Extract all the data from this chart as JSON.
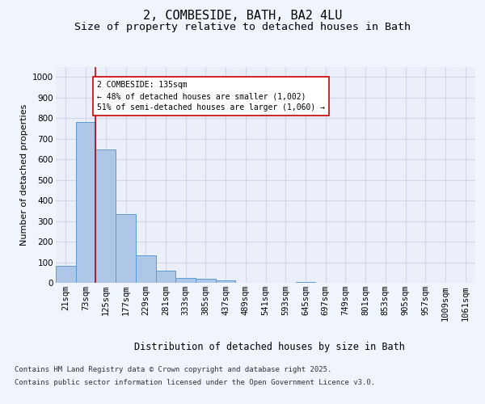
{
  "title_line1": "2, COMBESIDE, BATH, BA2 4LU",
  "title_line2": "Size of property relative to detached houses in Bath",
  "xlabel": "Distribution of detached houses by size in Bath",
  "ylabel": "Number of detached properties",
  "categories": [
    "21sqm",
    "73sqm",
    "125sqm",
    "177sqm",
    "229sqm",
    "281sqm",
    "333sqm",
    "385sqm",
    "437sqm",
    "489sqm",
    "541sqm",
    "593sqm",
    "645sqm",
    "697sqm",
    "749sqm",
    "801sqm",
    "853sqm",
    "905sqm",
    "957sqm",
    "1009sqm",
    "1061sqm"
  ],
  "bar_values": [
    83,
    780,
    648,
    332,
    132,
    57,
    22,
    18,
    10,
    0,
    0,
    0,
    5,
    0,
    0,
    0,
    0,
    0,
    0,
    0,
    0
  ],
  "bar_color": "#aec6e8",
  "bar_edge_color": "#5b9bd5",
  "vline_x": 2,
  "vline_color": "#cc0000",
  "annotation_text": "2 COMBESIDE: 135sqm\n← 48% of detached houses are smaller (1,002)\n51% of semi-detached houses are larger (1,060) →",
  "annotation_box_color": "#ffffff",
  "annotation_box_edge": "#cc0000",
  "ylim": [
    0,
    1050
  ],
  "yticks": [
    0,
    100,
    200,
    300,
    400,
    500,
    600,
    700,
    800,
    900,
    1000
  ],
  "grid_color": "#d0d8e8",
  "bg_color": "#eaeffa",
  "fig_bg_color": "#f0f4fd",
  "footer_line1": "Contains HM Land Registry data © Crown copyright and database right 2025.",
  "footer_line2": "Contains public sector information licensed under the Open Government Licence v3.0.",
  "title_fontsize": 11,
  "subtitle_fontsize": 9.5,
  "axis_label_fontsize": 8,
  "tick_fontsize": 7.5,
  "footer_fontsize": 6.5,
  "annotation_fontsize": 7
}
